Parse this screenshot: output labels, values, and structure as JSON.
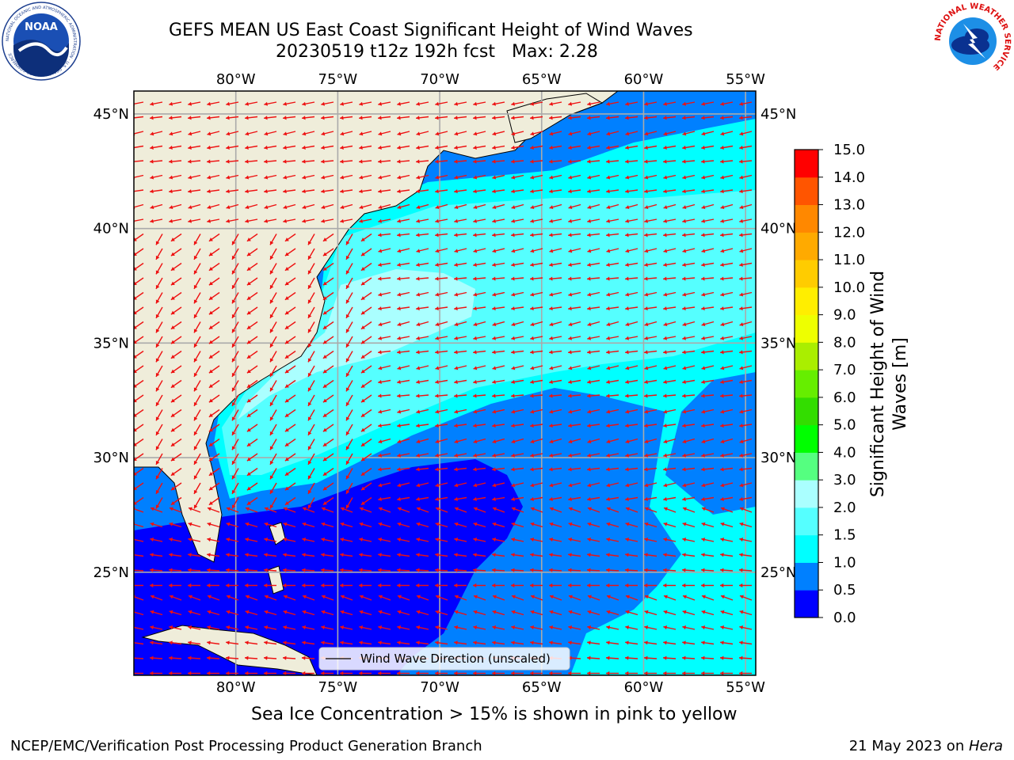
{
  "title": {
    "line1": "GEFS MEAN US East Coast Significant Height of Wind Waves",
    "line2": "20230519 t12z 192h fcst   Max: 2.28"
  },
  "map": {
    "lon_range": [
      -85,
      -54.5
    ],
    "lat_range": [
      20.5,
      46
    ],
    "lon_ticks": [
      -80,
      -75,
      -70,
      -65,
      -60,
      -55
    ],
    "lat_ticks": [
      25,
      30,
      35,
      40,
      45
    ],
    "lon_tick_labels": [
      "80°W",
      "75°W",
      "70°W",
      "65°W",
      "60°W",
      "55°W"
    ],
    "lat_tick_labels": [
      "25°N",
      "30°N",
      "35°N",
      "40°N",
      "45°N"
    ],
    "gridlines": true,
    "land_color": "#efedda",
    "arrow_color": "#ee1111",
    "legend_label": "Wind Wave Direction (unscaled)"
  },
  "colorbar": {
    "label": "Significant Height of Wind Waves [m]",
    "label_line1": "Significant Height of Wind",
    "label_line2": "Waves [m]",
    "ticks": [
      "0.0",
      "0.5",
      "1.0",
      "1.5",
      "2.0",
      "3.0",
      "4.0",
      "5.0",
      "6.0",
      "7.0",
      "8.0",
      "9.0",
      "10.0",
      "11.0",
      "12.0",
      "13.0",
      "14.0",
      "15.0"
    ],
    "colors": [
      "#0000ff",
      "#0080ff",
      "#00ffff",
      "#55ffff",
      "#aaffff",
      "#55ff80",
      "#00ff00",
      "#33dd00",
      "#66ee00",
      "#aaee00",
      "#eeff00",
      "#ffee00",
      "#ffcc00",
      "#ffaa00",
      "#ff8800",
      "#ff5500",
      "#ff0000"
    ]
  },
  "logos": {
    "noaa": "NOAA",
    "noaa_ring": "NATIONAL OCEANIC AND ATMOSPHERIC ADMINISTRATION · U.S. DEPARTMENT OF COMMERCE",
    "nws_ring": "NATIONAL WEATHER SERVICE"
  },
  "subtitle": "Sea Ice Concentration > 15% is shown in pink to yellow",
  "footer": {
    "left": "NCEP/EMC/Verification Post Processing Product Generation Branch",
    "date": "21 May 2023 on ",
    "machine": "Hera"
  }
}
